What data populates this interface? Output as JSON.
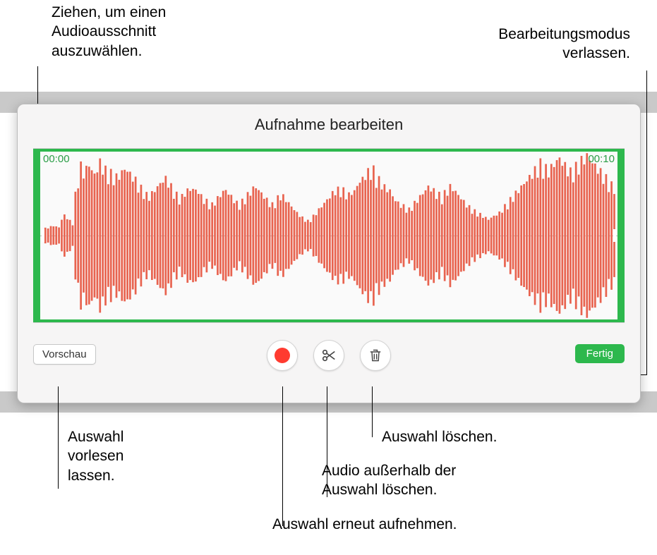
{
  "callouts": {
    "drag_select": "Ziehen, um einen\nAudioausschnitt\nauszuwählen.",
    "exit_edit": "Bearbeitungsmodus\nverlassen.",
    "preview": "Auswahl\nvorlesen\nlassen.",
    "rerecord": "Auswahl erneut aufnehmen.",
    "trim": "Audio außerhalb der\nAuswahl löschen.",
    "delete": "Auswahl löschen."
  },
  "panel": {
    "title": "Aufnahme bearbeiten",
    "time_start": "00:00",
    "time_end": "00:10",
    "preview_label": "Vorschau",
    "done_label": "Fertig"
  },
  "colors": {
    "selection_green": "#2db84d",
    "waveform_red": "#e8634f",
    "record_red": "#ff3b30",
    "panel_bg": "#f6f5f5",
    "gray_band": "#c9c9c9"
  },
  "waveform": {
    "bar_count": 210,
    "bar_color": "#e8634f",
    "bg": "#fafafa",
    "envelope": [
      0.08,
      0.09,
      0.1,
      0.11,
      0.12,
      0.11,
      0.1,
      0.2,
      0.25,
      0.22,
      0.18,
      0.15,
      0.5,
      0.7,
      0.85,
      0.78,
      0.82,
      0.88,
      0.8,
      0.75,
      0.82,
      0.9,
      0.85,
      0.8,
      0.78,
      0.76,
      0.72,
      0.7,
      0.74,
      0.78,
      0.82,
      0.8,
      0.76,
      0.72,
      0.68,
      0.62,
      0.58,
      0.55,
      0.5,
      0.48,
      0.52,
      0.56,
      0.6,
      0.64,
      0.68,
      0.7,
      0.66,
      0.6,
      0.55,
      0.5,
      0.45,
      0.48,
      0.52,
      0.56,
      0.6,
      0.58,
      0.55,
      0.52,
      0.48,
      0.45,
      0.42,
      0.4,
      0.38,
      0.42,
      0.46,
      0.5,
      0.54,
      0.56,
      0.52,
      0.48,
      0.44,
      0.4,
      0.38,
      0.42,
      0.46,
      0.5,
      0.54,
      0.58,
      0.6,
      0.56,
      0.52,
      0.48,
      0.44,
      0.4,
      0.38,
      0.42,
      0.46,
      0.5,
      0.48,
      0.44,
      0.4,
      0.36,
      0.32,
      0.28,
      0.25,
      0.22,
      0.2,
      0.18,
      0.2,
      0.24,
      0.28,
      0.32,
      0.36,
      0.4,
      0.44,
      0.48,
      0.52,
      0.56,
      0.6,
      0.58,
      0.55,
      0.52,
      0.5,
      0.54,
      0.58,
      0.62,
      0.66,
      0.7,
      0.74,
      0.78,
      0.8,
      0.76,
      0.72,
      0.68,
      0.64,
      0.6,
      0.56,
      0.52,
      0.48,
      0.44,
      0.4,
      0.38,
      0.36,
      0.34,
      0.32,
      0.36,
      0.4,
      0.44,
      0.48,
      0.52,
      0.56,
      0.6,
      0.58,
      0.55,
      0.52,
      0.5,
      0.48,
      0.52,
      0.56,
      0.6,
      0.58,
      0.54,
      0.5,
      0.46,
      0.42,
      0.38,
      0.35,
      0.32,
      0.3,
      0.28,
      0.26,
      0.24,
      0.22,
      0.2,
      0.22,
      0.24,
      0.26,
      0.28,
      0.32,
      0.36,
      0.4,
      0.44,
      0.48,
      0.52,
      0.56,
      0.6,
      0.64,
      0.68,
      0.72,
      0.76,
      0.8,
      0.84,
      0.88,
      0.85,
      0.82,
      0.8,
      0.84,
      0.88,
      0.92,
      0.95,
      0.9,
      0.86,
      0.82,
      0.78,
      0.8,
      0.84,
      0.88,
      0.92,
      0.95,
      0.98,
      0.94,
      0.9,
      0.86,
      0.82,
      0.78,
      0.74,
      0.7,
      0.66,
      0.62,
      0.58
    ]
  }
}
